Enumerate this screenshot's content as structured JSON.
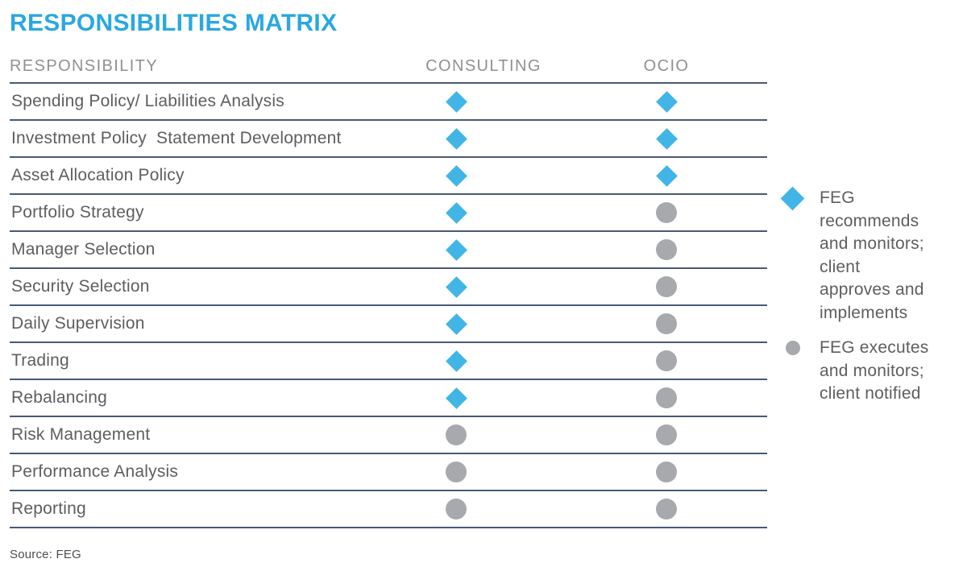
{
  "chart_data": {
    "type": "table",
    "title": "RESPONSIBILITIES MATRIX",
    "columns": [
      "RESPONSIBILITY",
      "CONSULTING",
      "OCIO"
    ],
    "rows": [
      [
        "Spending Policy/ Liabilities Analysis",
        "diamond",
        "diamond"
      ],
      [
        "Investment Policy  Statement Development",
        "diamond",
        "diamond"
      ],
      [
        "Asset Allocation Policy",
        "diamond",
        "diamond"
      ],
      [
        "Portfolio Strategy",
        "diamond",
        "circle"
      ],
      [
        "Manager Selection",
        "diamond",
        "circle"
      ],
      [
        "Security Selection",
        "diamond",
        "circle"
      ],
      [
        "Daily Supervision",
        "diamond",
        "circle"
      ],
      [
        "Trading",
        "diamond",
        "circle"
      ],
      [
        "Rebalancing",
        "diamond",
        "circle"
      ],
      [
        "Risk Management",
        "circle",
        "circle"
      ],
      [
        "Performance Analysis",
        "circle",
        "circle"
      ],
      [
        "Reporting",
        "circle",
        "circle"
      ]
    ],
    "legend": [
      {
        "symbol": "diamond",
        "color": "#41B6E6",
        "meaning": "FEG recommends and monitors; client approves and implements",
        "display_text": "FEG\nrecommends\nand monitors;\nclient\napproves and\nimplements"
      },
      {
        "symbol": "circle",
        "color": "#A7A9AC",
        "meaning": "FEG executes and monitors; client notified",
        "display_text": "FEG executes\nand monitors;\nclient notified"
      }
    ],
    "source": "Source: FEG",
    "legend_position": "right",
    "grid": "horizontal-rules-only",
    "colors": {
      "title_blue": "#29A8E0",
      "diamond_blue": "#41B6E6",
      "circle_gray": "#A7A9AC",
      "rule_slate": "#475977"
    }
  }
}
